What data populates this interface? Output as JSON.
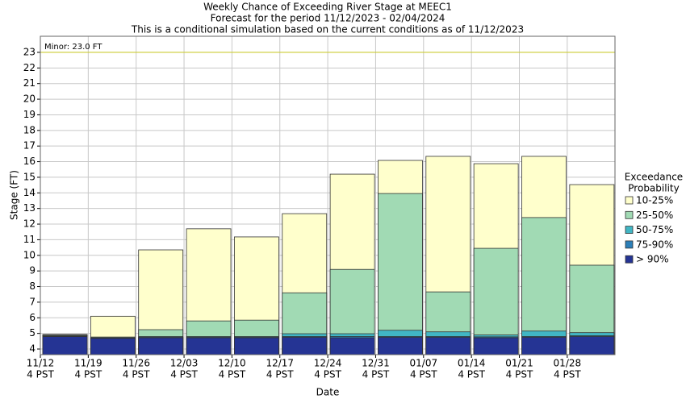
{
  "chart_data": {
    "type": "bar",
    "title": "Weekly Chance of Exceeding River Stage at MEEC1",
    "subtitle": "Forecast for the period 11/12/2023 - 02/04/2024",
    "note": "This is a conditional simulation based on the current conditions as of 11/12/2023",
    "x_label": "Date",
    "y_label": "Stage (FT)",
    "categories": [
      "11/12",
      "11/19",
      "11/26",
      "12/03",
      "12/10",
      "12/17",
      "12/24",
      "12/31",
      "01/07",
      "01/14",
      "01/21",
      "01/28"
    ],
    "category_sublabel": "4 PST",
    "legend_title": [
      "Exceedance",
      "Probability"
    ],
    "series": [
      {
        "name": "10-25%",
        "color": "#ffffcc",
        "values": [
          4.93,
          6.1,
          10.35,
          11.7,
          11.18,
          12.67,
          15.2,
          16.08,
          16.34,
          15.87,
          16.34,
          14.53
        ]
      },
      {
        "name": "25-50%",
        "color": "#a1dab4",
        "values": [
          4.9,
          4.77,
          5.24,
          5.8,
          5.85,
          7.6,
          9.1,
          13.96,
          7.66,
          10.45,
          12.42,
          9.37
        ]
      },
      {
        "name": "50-75%",
        "color": "#41b6c4",
        "values": [
          4.85,
          4.72,
          4.8,
          4.8,
          4.8,
          4.98,
          4.98,
          5.2,
          5.1,
          4.9,
          5.15,
          5.05
        ]
      },
      {
        "name": "75-90%",
        "color": "#2c7fb8",
        "values": [
          4.82,
          4.7,
          4.75,
          4.75,
          4.75,
          4.8,
          4.8,
          4.8,
          4.8,
          4.78,
          4.8,
          4.85
        ]
      },
      {
        "name": "> 90%",
        "color": "#253494",
        "values": [
          4.8,
          4.68,
          4.72,
          4.72,
          4.72,
          4.75,
          4.72,
          4.75,
          4.75,
          4.72,
          4.75,
          4.8
        ]
      }
    ],
    "threshold": {
      "label": "Minor: 23.0 FT",
      "value": 23.0,
      "color": "#cccc33"
    },
    "ylim": [
      3.64,
      24.03
    ],
    "yticks": [
      4,
      5,
      6,
      7,
      8,
      9,
      10,
      11,
      12,
      13,
      14,
      15,
      16,
      17,
      18,
      19,
      20,
      21,
      22,
      23
    ],
    "grid": true
  }
}
